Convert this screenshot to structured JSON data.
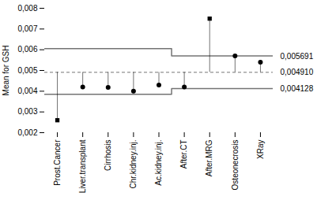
{
  "chart_data": {
    "type": "control",
    "categories": [
      "Prost.Cancer",
      "Liver.transplant",
      "Cirrhosis",
      "Chr.kidney.inj.",
      "Ac.kidney.inj.",
      "After.CT",
      "After.MRG",
      "Osteonecrosis",
      "XRay"
    ],
    "values": [
      0.0026,
      0.0042,
      0.00418,
      0.004,
      0.0043,
      0.0042,
      0.0075,
      0.0057,
      0.0054
    ],
    "upper_limit": [
      0.00605,
      0.00605,
      0.00605,
      0.00605,
      0.00605,
      0.0057,
      0.0057,
      0.0057,
      0.0057
    ],
    "lower_limit": [
      0.00385,
      0.00385,
      0.00385,
      0.00385,
      0.00385,
      0.00413,
      0.00413,
      0.00413,
      0.00413
    ],
    "mean": 0.00491,
    "ylabel": "Mean for GSH",
    "ylim": [
      0.002,
      0.008
    ],
    "yticks": [
      {
        "value": 0.002,
        "label": "0,002"
      },
      {
        "value": 0.003,
        "label": "0,003"
      },
      {
        "value": 0.004,
        "label": "0,004"
      },
      {
        "value": 0.005,
        "label": "0,005"
      },
      {
        "value": 0.006,
        "label": "0,006"
      },
      {
        "value": 0.007,
        "label": "0,007"
      },
      {
        "value": 0.008,
        "label": "0,008"
      }
    ],
    "y2lim": [
      0.002,
      0.008
    ],
    "y2ticks": [
      {
        "value": 0.005691,
        "label": "0,005691"
      },
      {
        "value": 0.00491,
        "label": "0,004910"
      },
      {
        "value": 0.004128,
        "label": "0,004128"
      }
    ]
  }
}
